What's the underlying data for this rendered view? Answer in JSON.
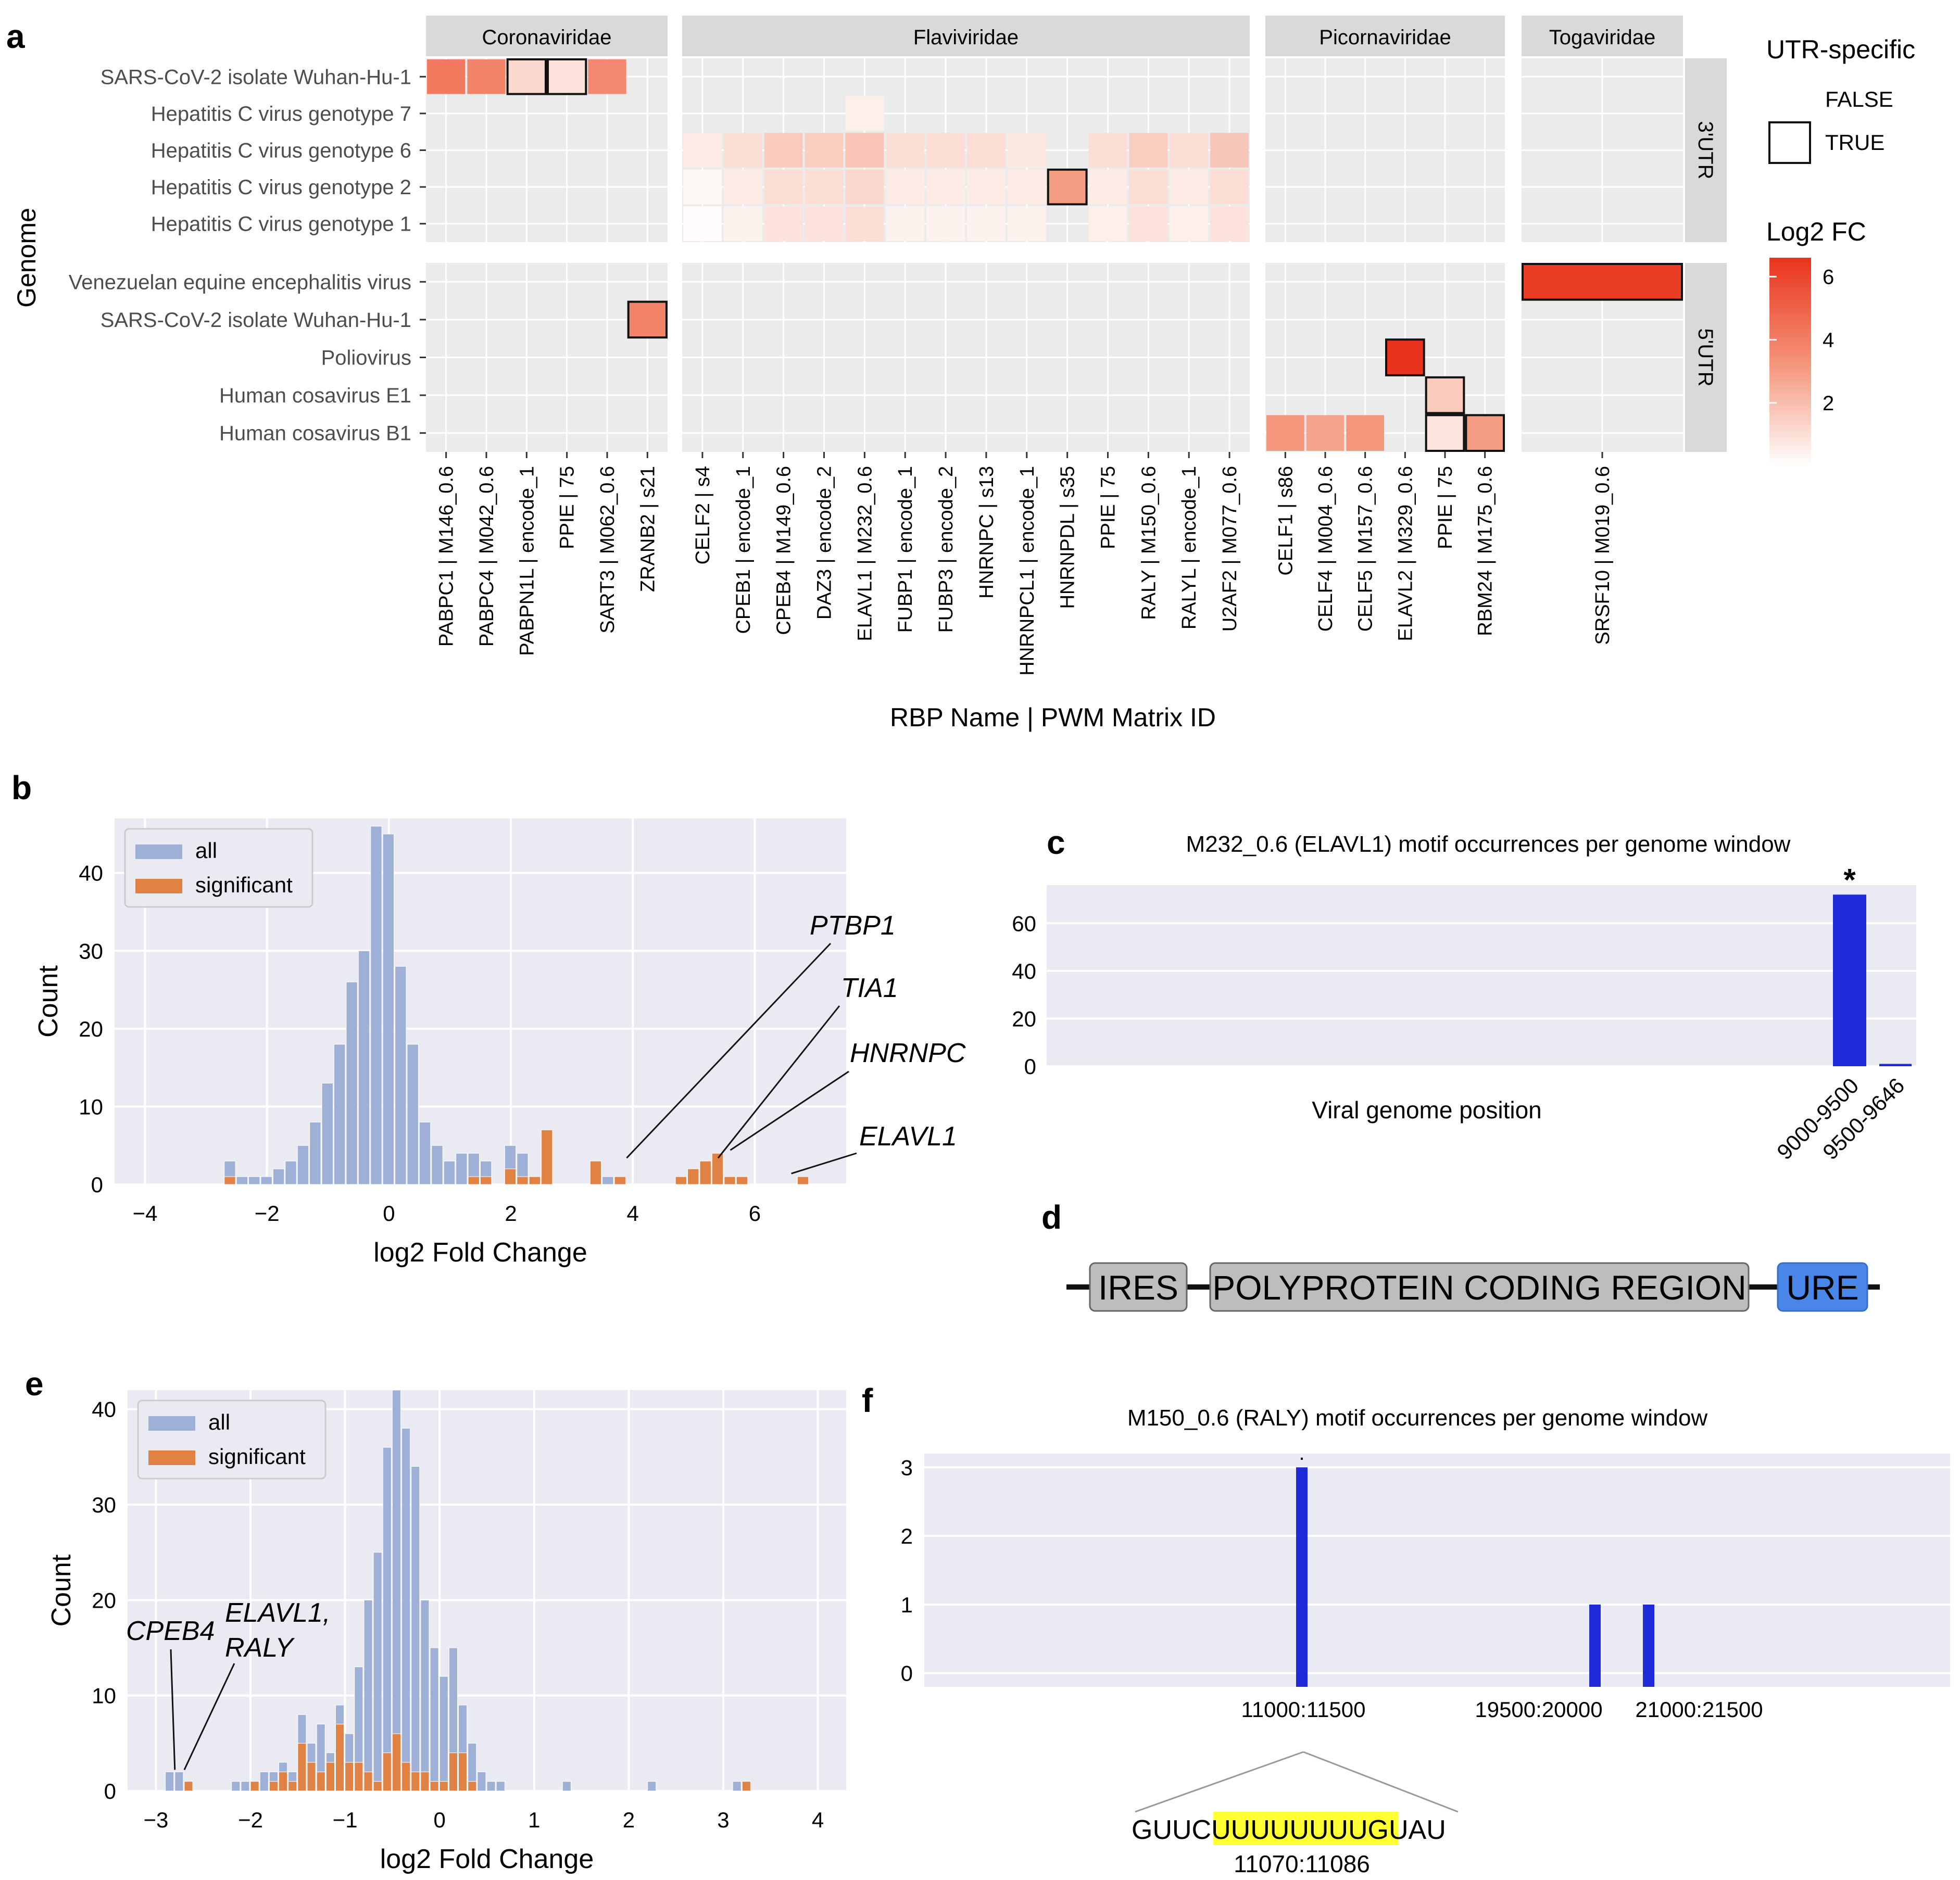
{
  "colors": {
    "panel_bg": "#ebebeb",
    "strip_bg": "#d9d9d9",
    "hist_bg": "#eaeaf2",
    "hist_all": "#9fb0d6",
    "hist_sig": "#e08244",
    "bar_blue": "#1f2bd9",
    "legend_box": "#333333",
    "ires_fill": "#bdbdbd",
    "ure_fill": "#4a86e8",
    "highlight": "#ffff33",
    "heat_low": "#fff5f0",
    "heat_high": "#e8341c"
  },
  "chart_data": [
    {
      "panel": "a",
      "type": "heatmap",
      "ylabel": "Genome",
      "xlabel": "RBP Name | PWM Matrix ID",
      "facet_cols": [
        {
          "name": "Coronaviridae",
          "cols": [
            "PABPC1 | M146_0.6",
            "PABPC4 | M042_0.6",
            "PABPN1L | encode_1",
            "PPIE | 75",
            "SART3 | M062_0.6",
            "ZRANB2 | s21"
          ]
        },
        {
          "name": "Flaviviridae",
          "cols": [
            "CELF2 | s4",
            "CPEB1 | encode_1",
            "CPEB4 | M149_0.6",
            "DAZ3 | encode_2",
            "ELAVL1 | M232_0.6",
            "FUBP1 | encode_1",
            "FUBP3 | encode_2",
            "HNRNPC | s13",
            "HNRNPCL1 | encode_1",
            "HNRNPDL | s35",
            "PPIE | 75",
            "RALY | M150_0.6",
            "RALYL | encode_1",
            "U2AF2 | M077_0.6"
          ]
        },
        {
          "name": "Picornaviridae",
          "cols": [
            "CELF1 | s86",
            "CELF4 | M004_0.6",
            "CELF5 | M157_0.6",
            "ELAVL2 | M329_0.6",
            "PPIE | 75",
            "RBM24 | M175_0.6"
          ]
        },
        {
          "name": "Togaviridae",
          "cols": [
            "SRSF10 | M019_0.6"
          ]
        }
      ],
      "facet_rows": [
        {
          "name": "3'UTR",
          "rows": [
            "SARS-CoV-2 isolate Wuhan-Hu-1",
            "Hepatitis C virus genotype 7",
            "Hepatitis C virus genotype 6",
            "Hepatitis C virus genotype 2",
            "Hepatitis C virus genotype 1"
          ]
        },
        {
          "name": "5'UTR",
          "rows": [
            "Venezuelan equine encephalitis virus",
            "SARS-CoV-2 isolate Wuhan-Hu-1",
            "Poliovirus",
            "Human cosavirus E1",
            "Human cosavirus B1"
          ]
        }
      ],
      "cells": [
        {
          "cf": 0,
          "rf": 0,
          "r": 0,
          "c": 0,
          "v": 4.2,
          "utr": false
        },
        {
          "cf": 0,
          "rf": 0,
          "r": 0,
          "c": 1,
          "v": 3.8,
          "utr": false
        },
        {
          "cf": 0,
          "rf": 0,
          "r": 0,
          "c": 2,
          "v": 1.2,
          "utr": true
        },
        {
          "cf": 0,
          "rf": 0,
          "r": 0,
          "c": 3,
          "v": 0.9,
          "utr": true
        },
        {
          "cf": 0,
          "rf": 0,
          "r": 0,
          "c": 4,
          "v": 3.6,
          "utr": false
        },
        {
          "cf": 0,
          "rf": 1,
          "r": 1,
          "c": 5,
          "v": 3.8,
          "utr": true
        },
        {
          "cf": 1,
          "rf": 0,
          "r": 1,
          "c": 4,
          "v": 0.5,
          "utr": false
        },
        {
          "cf": 1,
          "rf": 0,
          "r": 2,
          "c": 0,
          "v": 0.6,
          "utr": false
        },
        {
          "cf": 1,
          "rf": 0,
          "r": 2,
          "c": 1,
          "v": 1.0,
          "utr": false
        },
        {
          "cf": 1,
          "rf": 0,
          "r": 2,
          "c": 2,
          "v": 1.6,
          "utr": false
        },
        {
          "cf": 1,
          "rf": 0,
          "r": 2,
          "c": 3,
          "v": 1.5,
          "utr": false
        },
        {
          "cf": 1,
          "rf": 0,
          "r": 2,
          "c": 4,
          "v": 1.8,
          "utr": false
        },
        {
          "cf": 1,
          "rf": 0,
          "r": 2,
          "c": 5,
          "v": 1.0,
          "utr": false
        },
        {
          "cf": 1,
          "rf": 0,
          "r": 2,
          "c": 6,
          "v": 1.0,
          "utr": false
        },
        {
          "cf": 1,
          "rf": 0,
          "r": 2,
          "c": 7,
          "v": 1.0,
          "utr": false
        },
        {
          "cf": 1,
          "rf": 0,
          "r": 2,
          "c": 8,
          "v": 0.7,
          "utr": false
        },
        {
          "cf": 1,
          "rf": 0,
          "r": 2,
          "c": 10,
          "v": 1.0,
          "utr": false
        },
        {
          "cf": 1,
          "rf": 0,
          "r": 2,
          "c": 11,
          "v": 1.5,
          "utr": false
        },
        {
          "cf": 1,
          "rf": 0,
          "r": 2,
          "c": 12,
          "v": 1.0,
          "utr": false
        },
        {
          "cf": 1,
          "rf": 0,
          "r": 2,
          "c": 13,
          "v": 1.7,
          "utr": false
        },
        {
          "cf": 1,
          "rf": 0,
          "r": 3,
          "c": 0,
          "v": 0.2,
          "utr": false
        },
        {
          "cf": 1,
          "rf": 0,
          "r": 3,
          "c": 1,
          "v": 0.6,
          "utr": false
        },
        {
          "cf": 1,
          "rf": 0,
          "r": 3,
          "c": 2,
          "v": 1.0,
          "utr": false
        },
        {
          "cf": 1,
          "rf": 0,
          "r": 3,
          "c": 3,
          "v": 1.0,
          "utr": false
        },
        {
          "cf": 1,
          "rf": 0,
          "r": 3,
          "c": 4,
          "v": 1.2,
          "utr": false
        },
        {
          "cf": 1,
          "rf": 0,
          "r": 3,
          "c": 5,
          "v": 0.6,
          "utr": false
        },
        {
          "cf": 1,
          "rf": 0,
          "r": 3,
          "c": 6,
          "v": 0.6,
          "utr": false
        },
        {
          "cf": 1,
          "rf": 0,
          "r": 3,
          "c": 7,
          "v": 0.6,
          "utr": false
        },
        {
          "cf": 1,
          "rf": 0,
          "r": 3,
          "c": 8,
          "v": 0.6,
          "utr": false
        },
        {
          "cf": 1,
          "rf": 0,
          "r": 3,
          "c": 9,
          "v": 3.0,
          "utr": true
        },
        {
          "cf": 1,
          "rf": 0,
          "r": 3,
          "c": 10,
          "v": 0.6,
          "utr": false
        },
        {
          "cf": 1,
          "rf": 0,
          "r": 3,
          "c": 11,
          "v": 1.0,
          "utr": false
        },
        {
          "cf": 1,
          "rf": 0,
          "r": 3,
          "c": 12,
          "v": 0.6,
          "utr": false
        },
        {
          "cf": 1,
          "rf": 0,
          "r": 3,
          "c": 13,
          "v": 1.0,
          "utr": false
        },
        {
          "cf": 1,
          "rf": 0,
          "r": 4,
          "c": 0,
          "v": 0.1,
          "utr": false
        },
        {
          "cf": 1,
          "rf": 0,
          "r": 4,
          "c": 1,
          "v": 0.4,
          "utr": false
        },
        {
          "cf": 1,
          "rf": 0,
          "r": 4,
          "c": 2,
          "v": 0.9,
          "utr": false
        },
        {
          "cf": 1,
          "rf": 0,
          "r": 4,
          "c": 3,
          "v": 0.9,
          "utr": false
        },
        {
          "cf": 1,
          "rf": 0,
          "r": 4,
          "c": 4,
          "v": 1.0,
          "utr": false
        },
        {
          "cf": 1,
          "rf": 0,
          "r": 4,
          "c": 5,
          "v": 0.4,
          "utr": false
        },
        {
          "cf": 1,
          "rf": 0,
          "r": 4,
          "c": 6,
          "v": 0.4,
          "utr": false
        },
        {
          "cf": 1,
          "rf": 0,
          "r": 4,
          "c": 7,
          "v": 0.4,
          "utr": false
        },
        {
          "cf": 1,
          "rf": 0,
          "r": 4,
          "c": 8,
          "v": 0.4,
          "utr": false
        },
        {
          "cf": 1,
          "rf": 0,
          "r": 4,
          "c": 10,
          "v": 0.5,
          "utr": false
        },
        {
          "cf": 1,
          "rf": 0,
          "r": 4,
          "c": 11,
          "v": 0.9,
          "utr": false
        },
        {
          "cf": 1,
          "rf": 0,
          "r": 4,
          "c": 12,
          "v": 0.5,
          "utr": false
        },
        {
          "cf": 1,
          "rf": 0,
          "r": 4,
          "c": 13,
          "v": 0.9,
          "utr": false
        },
        {
          "cf": 2,
          "rf": 1,
          "r": 2,
          "c": 3,
          "v": 6.6,
          "utr": true
        },
        {
          "cf": 2,
          "rf": 1,
          "r": 3,
          "c": 4,
          "v": 1.6,
          "utr": true
        },
        {
          "cf": 2,
          "rf": 1,
          "r": 4,
          "c": 0,
          "v": 3.2,
          "utr": false
        },
        {
          "cf": 2,
          "rf": 1,
          "r": 4,
          "c": 1,
          "v": 2.8,
          "utr": false
        },
        {
          "cf": 2,
          "rf": 1,
          "r": 4,
          "c": 2,
          "v": 3.2,
          "utr": false
        },
        {
          "cf": 2,
          "rf": 1,
          "r": 4,
          "c": 4,
          "v": 0.8,
          "utr": true
        },
        {
          "cf": 2,
          "rf": 1,
          "r": 4,
          "c": 5,
          "v": 3.0,
          "utr": true
        },
        {
          "cf": 3,
          "rf": 1,
          "r": 0,
          "c": 0,
          "v": 6.3,
          "utr": true
        }
      ],
      "legend": {
        "utr_title": "UTR-specific",
        "utr_false": "FALSE",
        "utr_true": "TRUE",
        "fc_title": "Log2 FC",
        "fc_ticks": [
          "6",
          "4",
          "2"
        ]
      }
    },
    {
      "panel": "b",
      "type": "bar",
      "title": "",
      "xlabel": "log2 Fold Change",
      "ylabel": "Count",
      "xlim": [
        -4.5,
        7.5
      ],
      "ylim": [
        0,
        47
      ],
      "xticks": [
        -4,
        -2,
        0,
        2,
        4,
        6
      ],
      "xtick_labels": [
        "−4",
        "−2",
        "0",
        "2",
        "4",
        "6"
      ],
      "yticks": [
        0,
        10,
        20,
        30,
        40
      ],
      "bin_start": -2.7,
      "bin_width": 0.2,
      "series": [
        {
          "name": "all",
          "values": [
            3,
            1,
            1,
            1,
            2,
            3,
            5,
            8,
            13,
            18,
            26,
            30,
            46,
            45,
            28,
            18,
            8,
            5,
            3,
            4,
            4,
            3,
            0,
            5,
            4,
            1,
            6,
            0,
            0,
            0,
            0,
            1,
            0,
            0,
            0,
            0,
            0,
            0,
            0,
            3,
            4,
            1,
            1,
            0,
            0,
            0,
            0,
            0,
            0,
            0,
            0,
            0
          ]
        },
        {
          "name": "significant",
          "values": [
            1,
            0,
            0,
            0,
            0,
            0,
            0,
            0,
            0,
            0,
            0,
            0,
            0,
            0,
            0,
            0,
            0,
            0,
            0,
            0,
            1,
            1,
            0,
            2,
            1,
            1,
            7,
            0,
            0,
            0,
            3,
            0,
            1,
            0,
            0,
            0,
            0,
            1,
            2,
            3,
            4,
            1,
            1,
            0,
            0,
            0,
            0,
            1,
            0,
            0,
            0,
            0
          ]
        }
      ],
      "annotations": [
        {
          "label": "PTBP1",
          "x": 3.9,
          "y": 3
        },
        {
          "label": "TIA1",
          "x": 5.4,
          "y": 3
        },
        {
          "label": "HNRNPC",
          "x": 5.6,
          "y": 4
        },
        {
          "label": "ELAVL1",
          "x": 6.6,
          "y": 1
        }
      ]
    },
    {
      "panel": "c",
      "type": "bar",
      "title": "M232_0.6 (ELAVL1) motif occurrences per genome window",
      "xlabel": "Viral genome position",
      "ylabel": "",
      "categories": [
        "9000-9500",
        "9500-9646"
      ],
      "values": [
        72,
        1
      ],
      "ylim": [
        0,
        76
      ],
      "yticks": [
        0,
        20,
        40,
        60
      ],
      "significance": [
        "*",
        ""
      ]
    },
    {
      "panel": "e",
      "type": "bar",
      "title": "",
      "xlabel": "log2 Fold Change",
      "ylabel": "Count",
      "xlim": [
        -3.3,
        4.3
      ],
      "ylim": [
        0,
        42
      ],
      "xticks": [
        -3,
        -2,
        -1,
        0,
        1,
        2,
        3,
        4
      ],
      "xtick_labels": [
        "−3",
        "−2",
        "−1",
        "0",
        "1",
        "2",
        "3",
        "4"
      ],
      "yticks": [
        0,
        10,
        20,
        30,
        40
      ],
      "bin_start": -2.9,
      "bin_width": 0.1,
      "series": [
        {
          "name": "all",
          "values": [
            2,
            2,
            0,
            0,
            0,
            0,
            0,
            1,
            1,
            1,
            2,
            2,
            3,
            2,
            8,
            5,
            7,
            4,
            9,
            6,
            13,
            20,
            25,
            36,
            42,
            38,
            34,
            20,
            15,
            12,
            15,
            9,
            5,
            2,
            1,
            1,
            0,
            0,
            0,
            0,
            0,
            0,
            1,
            0,
            0,
            0,
            0,
            0,
            0,
            0,
            0,
            1,
            0,
            0,
            0,
            0,
            0,
            0,
            0,
            0,
            1,
            0,
            0,
            0,
            0,
            0,
            0,
            0,
            0,
            0,
            0,
            0,
            0
          ]
        },
        {
          "name": "significant",
          "values": [
            0,
            0,
            1,
            0,
            0,
            0,
            0,
            0,
            0,
            1,
            0,
            1,
            2,
            1,
            5,
            3,
            2,
            3,
            7,
            3,
            3,
            2,
            1,
            4,
            6,
            3,
            2,
            2,
            1,
            1,
            4,
            4,
            1,
            0,
            0,
            0,
            0,
            0,
            0,
            0,
            0,
            0,
            0,
            0,
            0,
            0,
            0,
            0,
            0,
            0,
            0,
            0,
            0,
            0,
            0,
            0,
            0,
            0,
            0,
            0,
            0,
            1,
            0,
            0,
            0,
            0,
            0,
            0,
            0,
            0,
            0,
            0,
            0
          ]
        }
      ],
      "annotations": [
        {
          "label": "CPEB4",
          "x": -2.8,
          "y": 2
        },
        {
          "label": "ELAVL1,",
          "x": -2.7,
          "y": 2
        },
        {
          "label": "RALY",
          "x": -2.7,
          "y": 2
        }
      ]
    },
    {
      "panel": "f",
      "type": "bar",
      "title": "M150_0.6 (RALY) motif occurrences per genome window",
      "xlabel": "",
      "ylabel": "",
      "categories": [
        "11000:11500",
        "19500:20000",
        "21000:21500"
      ],
      "positions": [
        11250,
        19750,
        21250
      ],
      "xlim": [
        0,
        30000
      ],
      "values": [
        3,
        1,
        1
      ],
      "ylim": [
        -0.2,
        3.2
      ],
      "yticks": [
        0,
        1,
        2,
        3
      ],
      "significance": [
        "·",
        "",
        ""
      ],
      "sequence": {
        "prefix": "GUUC",
        "motif": "UUUUUUUUG",
        "suffix": "UAU",
        "range": "11070:11086"
      }
    }
  ],
  "panel_labels": {
    "a": "a",
    "b": "b",
    "c": "c",
    "d": "d",
    "e": "e",
    "f": "f"
  },
  "panel_d": {
    "items": [
      "IRES",
      "POLYPROTEIN CODING REGION",
      "URE"
    ]
  }
}
